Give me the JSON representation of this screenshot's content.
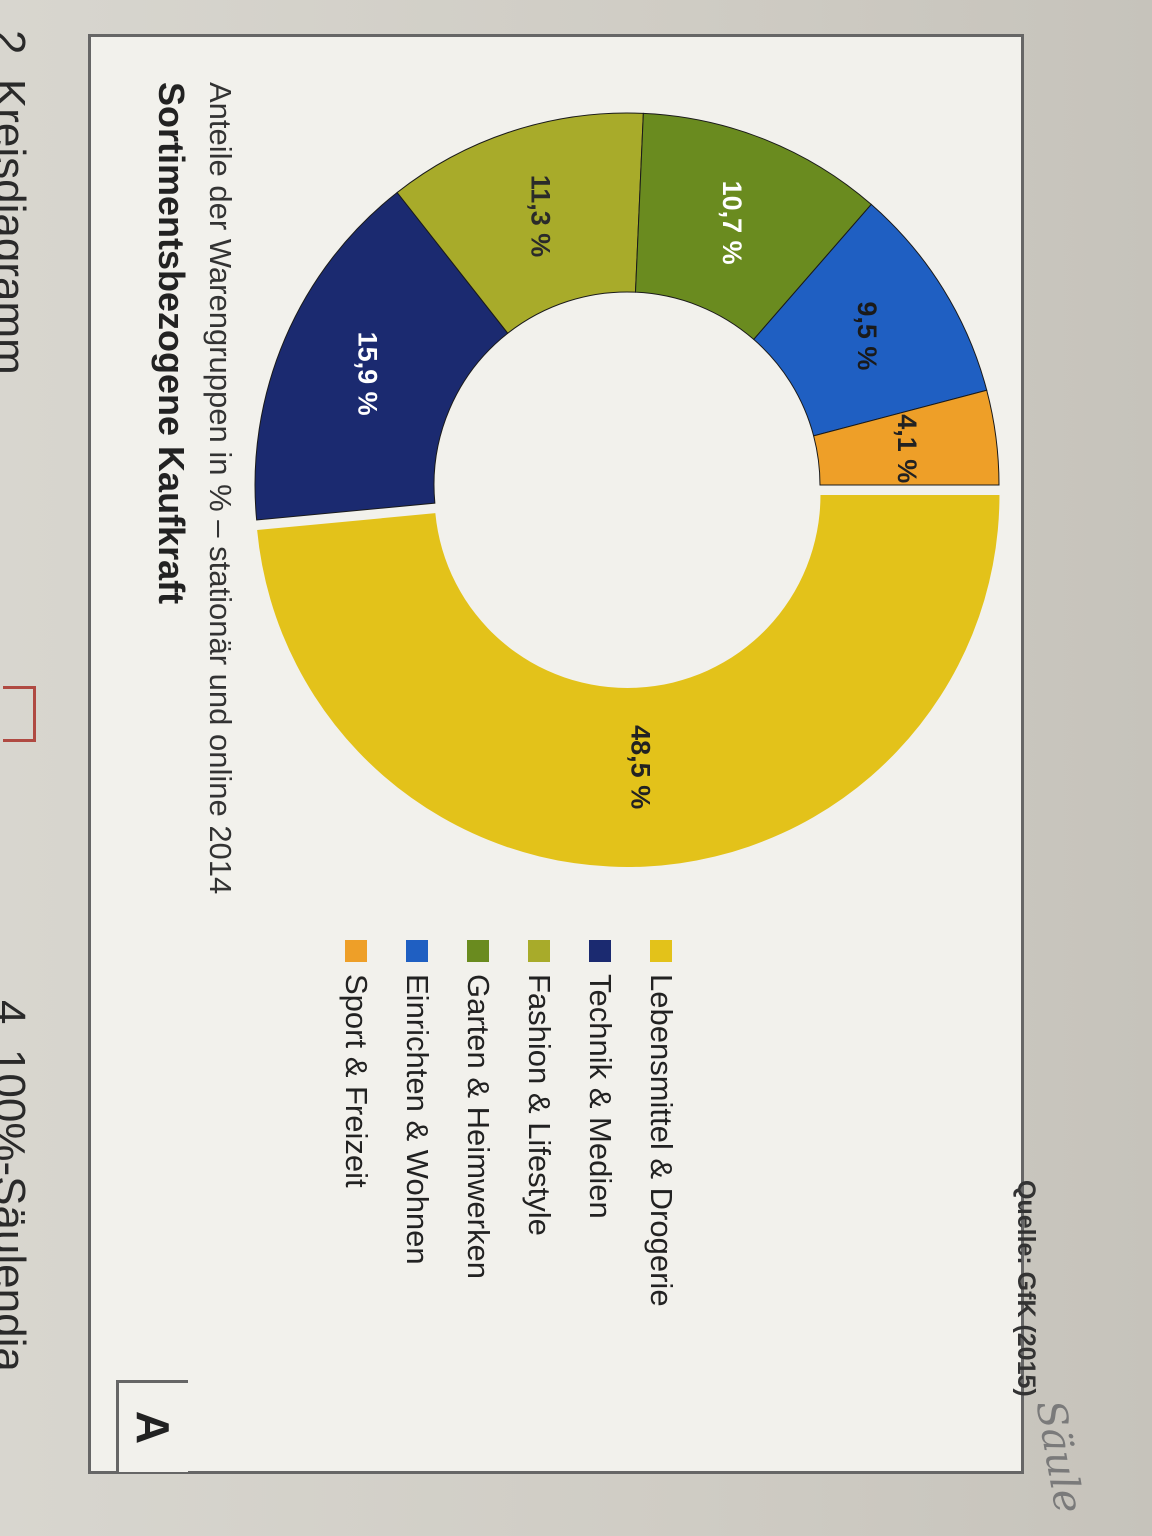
{
  "page_headings": {
    "left": "2. Kreisdiagramm",
    "right": "4. 100%-Säulendia"
  },
  "box_label": "A",
  "title": "Sortimentsbezogene Kaufkraft",
  "subtitle": "Anteile der Warengruppen in % – stationär und online 2014",
  "source": "Quelle: GfK (2015)",
  "handwritten_note": "Säule",
  "chart_data": {
    "type": "pie",
    "variant": "donut",
    "title": "Sortimentsbezogene Kaufkraft",
    "subtitle": "Anteile der Warengruppen in % – stationär und online 2014",
    "legend_position": "right",
    "series": [
      {
        "name": "Lebensmittel & Drogerie",
        "value": 48.5,
        "label": "48,5 %",
        "color": "#e3c21a"
      },
      {
        "name": "Technik & Medien",
        "value": 15.9,
        "label": "15,9 %",
        "color": "#1b2a70"
      },
      {
        "name": "Fashion & Lifestyle",
        "value": 11.3,
        "label": "11,3 %",
        "color": "#a8ab2a"
      },
      {
        "name": "Garten & Heimwerken",
        "value": 10.7,
        "label": "10,7 %",
        "color": "#6a8b1f"
      },
      {
        "name": "Einrichten & Wohnen",
        "value": 9.5,
        "label": "9,5 %",
        "color": "#1f5fc2"
      },
      {
        "name": "Sport & Freizeit",
        "value": 4.1,
        "label": "4,1 %",
        "color": "#ee9f28"
      }
    ]
  }
}
